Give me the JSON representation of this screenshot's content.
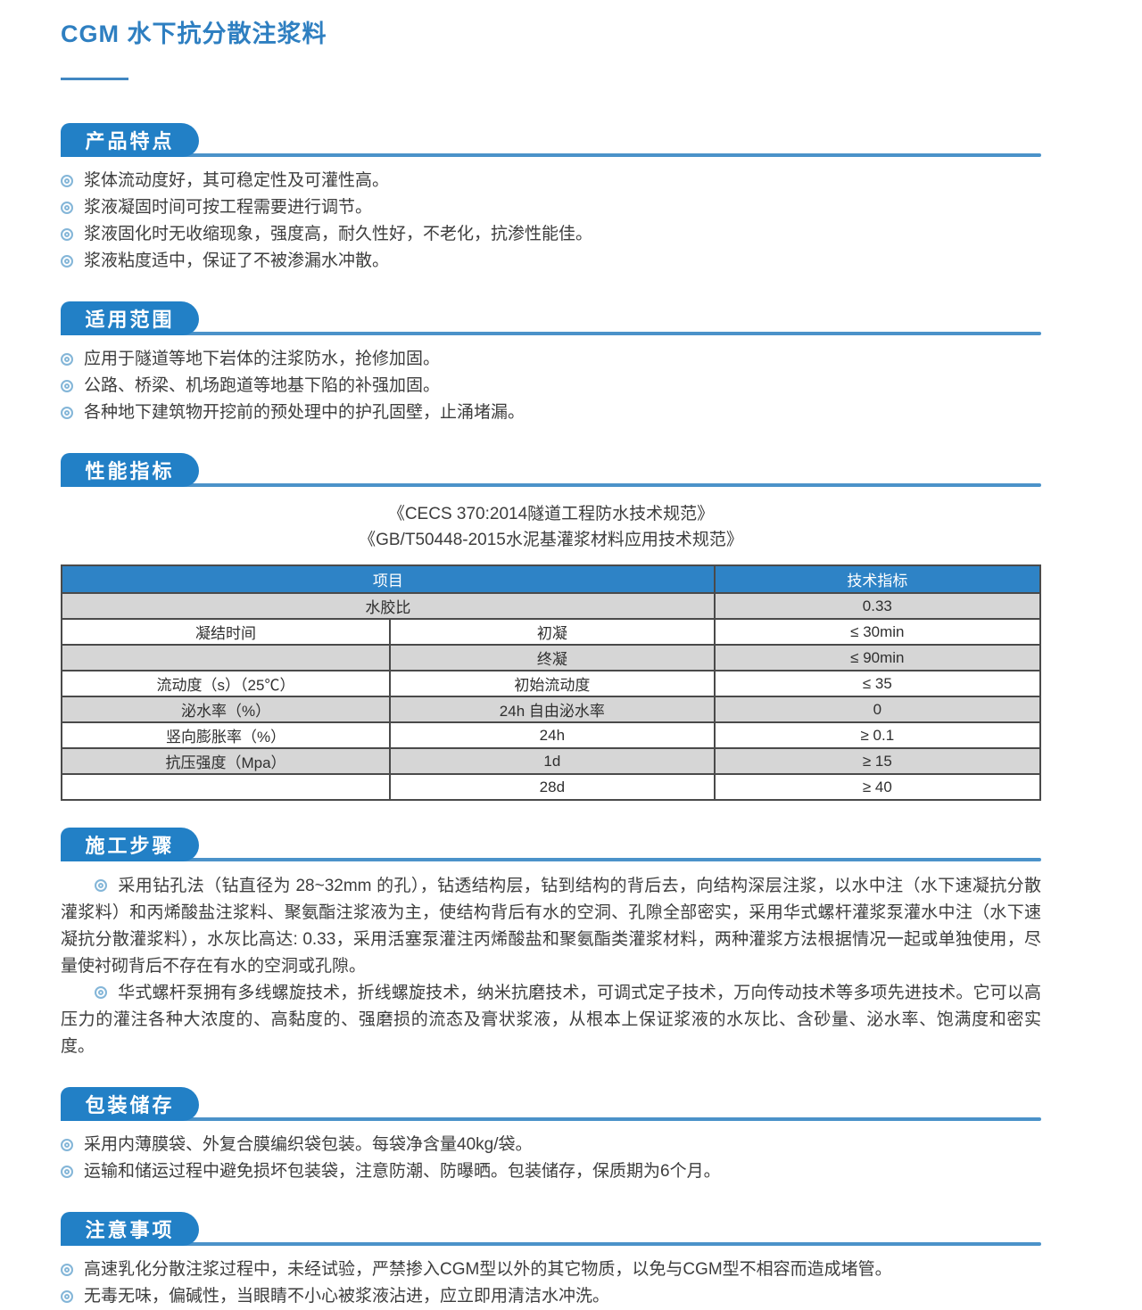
{
  "page": {
    "title": "CGM 水下抗分散注浆料"
  },
  "colors": {
    "accent_blue": "#2280c6",
    "rule_blue": "#4b92c9",
    "title_blue": "#2e7fc1",
    "table_header_blue": "#2e83c6",
    "table_gray_row": "#d6d6d6",
    "bullet_ring_blue": "#84b6d8",
    "body_text": "#3d3d3d"
  },
  "sections": {
    "features": {
      "title": "产品特点",
      "items": [
        "浆体流动度好，其可稳定性及可灌性高。",
        "浆液凝固时间可按工程需要进行调节。",
        "浆液固化时无收缩现象，强度高，耐久性好，不老化，抗渗性能佳。",
        "浆液粘度适中，保证了不被渗漏水冲散。"
      ]
    },
    "scope": {
      "title": "适用范围",
      "items": [
        "应用于隧道等地下岩体的注浆防水，抢修加固。",
        "公路、桥梁、机场跑道等地基下陷的补强加固。",
        "各种地下建筑物开挖前的预处理中的护孔固壁，止涌堵漏。"
      ]
    },
    "performance": {
      "title": "性能指标",
      "standards": [
        "《CECS 370:2014隧道工程防水技术规范》",
        "《GB/T50448-2015水泥基灌浆材料应用技术规范》"
      ],
      "table": {
        "header": [
          {
            "text": "项目",
            "colspan": 2
          },
          {
            "text": "技术指标",
            "colspan": 1
          }
        ],
        "rows": [
          {
            "shade": "gray",
            "cells": [
              {
                "text": "水胶比",
                "colspan": 2
              },
              {
                "text": "0.33"
              }
            ]
          },
          {
            "shade": "white",
            "cells": [
              {
                "text": "凝结时间"
              },
              {
                "text": "初凝"
              },
              {
                "text": "≤ 30min"
              }
            ]
          },
          {
            "shade": "gray",
            "cells": [
              {
                "text": ""
              },
              {
                "text": "终凝"
              },
              {
                "text": "≤ 90min"
              }
            ]
          },
          {
            "shade": "white",
            "cells": [
              {
                "text": "流动度（s）（25℃）"
              },
              {
                "text": "初始流动度"
              },
              {
                "text": "≤ 35"
              }
            ]
          },
          {
            "shade": "gray",
            "cells": [
              {
                "text": "泌水率（%）"
              },
              {
                "text": "24h 自由泌水率"
              },
              {
                "text": "0"
              }
            ]
          },
          {
            "shade": "white",
            "cells": [
              {
                "text": "竖向膨胀率（%）"
              },
              {
                "text": "24h"
              },
              {
                "text": "≥ 0.1"
              }
            ]
          },
          {
            "shade": "gray",
            "cells": [
              {
                "text": "抗压强度（Mpa）"
              },
              {
                "text": "1d"
              },
              {
                "text": "≥ 15"
              }
            ]
          },
          {
            "shade": "white",
            "cells": [
              {
                "text": ""
              },
              {
                "text": "28d"
              },
              {
                "text": "≥ 40"
              }
            ]
          }
        ]
      }
    },
    "steps": {
      "title": "施工步骤",
      "paragraphs": [
        "采用钻孔法（钻直径为 28~32mm 的孔），钻透结构层，钻到结构的背后去，向结构深层注浆，以水中注（水下速凝抗分散灌浆料）和丙烯酸盐注浆料、聚氨酯注浆液为主，使结构背后有水的空洞、孔隙全部密实，采用华式螺杆灌浆泵灌水中注（水下速凝抗分散灌浆料），水灰比高达: 0.33，采用活塞泵灌注丙烯酸盐和聚氨酯类灌浆材料，两种灌浆方法根据情况一起或单独使用，尽量使衬砌背后不存在有水的空洞或孔隙。",
        "华式螺杆泵拥有多线螺旋技术，折线螺旋技术，纳米抗磨技术，可调式定子技术，万向传动技术等多项先进技术。它可以高压力的灌注各种大浓度的、高黏度的、强磨损的流态及膏状浆液，从根本上保证浆液的水灰比、含砂量、泌水率、饱满度和密实度。"
      ]
    },
    "packaging": {
      "title": "包装储存",
      "items": [
        "采用内薄膜袋、外复合膜编织袋包装。每袋净含量40kg/袋。",
        "运输和储运过程中避免损坏包装袋，注意防潮、防曝晒。包装储存，保质期为6个月。"
      ]
    },
    "notes": {
      "title": "注意事项",
      "items": [
        "高速乳化分散注浆过程中，未经试验，严禁掺入CGM型以外的其它物质，以免与CGM型不相容而造成堵管。",
        "无毒无味，偏碱性，当眼睛不小心被浆液沾进，应立即用清洁水冲洗。"
      ]
    }
  }
}
